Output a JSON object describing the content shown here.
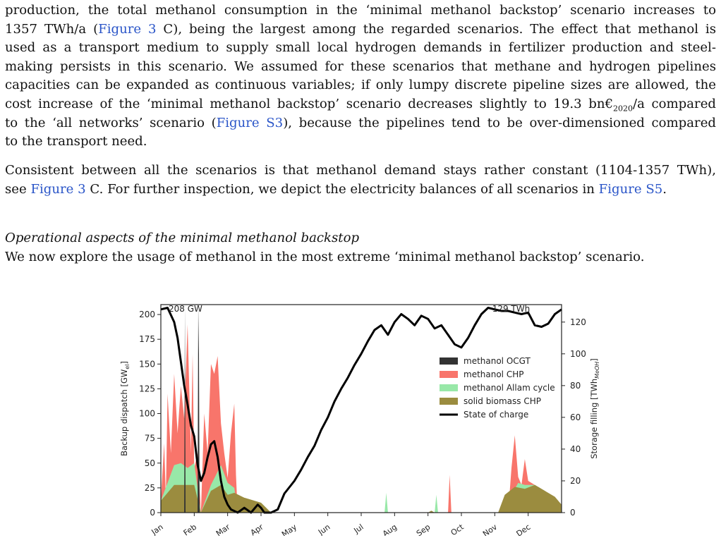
{
  "para1": {
    "l1": "production, the total methanol consumption in the ‘minimal methanol backstop’ scenario increases to",
    "l2a": "1357 TWh/a (",
    "l2ref": "Figure 3",
    "l2b": " C), being the largest among the regarded scenarios. The effect that methanol is",
    "l3": "used as a transport medium to supply small local hydrogen demands in fertilizer production and steel-",
    "l4": "making persists in this scenario. We assumed for these scenarios that methane and hydrogen pipelines",
    "l5": "capacities can be expanded as continuous variables; if only lumpy discrete pipeline sizes are allowed, the",
    "l6a": "cost increase of the ‘minimal methanol backstop’ scenario decreases slightly to 19.3 bn€",
    "l6sub": "2020",
    "l6b": "/a compared",
    "l7a": "to the ‘all networks’ scenario (",
    "l7ref": "Figure S3",
    "l7b": "), because the pipelines tend to be over-dimensioned compared",
    "l8": "to the transport need."
  },
  "para2": {
    "l1": "Consistent between all the scenarios is that methanol demand stays rather constant (1104-1357 TWh),",
    "l2a": "see ",
    "l2ref": "Figure 3",
    "l2b": " C. For further inspection, we depict the electricity balances of all scenarios in ",
    "l2ref2": "Figure S5",
    "l2c": "."
  },
  "section_heading": "Operational aspects of the minimal methanol backstop",
  "lead_sentence": "We now explore the usage of methanol in the most extreme ‘minimal methanol backstop’ scenario.",
  "colors": {
    "ocgt": "#333333",
    "chp": "#f8756b",
    "allam": "#98e8a8",
    "biomass": "#9b8c3f",
    "soc": "#000000",
    "link": "#2a55c8"
  },
  "chart_data": {
    "type": "area",
    "xlabel": "",
    "ylabel": "Backup dispatch [GW",
    "ylabel_sub": "el",
    "ylabel_end": "]",
    "y2label": "Storage filling [TWh",
    "y2label_sub": "MeOH",
    "y2label_end": "]",
    "ylim": [
      0,
      210
    ],
    "y2lim": [
      0,
      131
    ],
    "yticks": [
      "0",
      "25",
      "50",
      "75",
      "100",
      "125",
      "150",
      "175",
      "200"
    ],
    "y2ticks": [
      "0",
      "20",
      "40",
      "60",
      "80",
      "100",
      "120"
    ],
    "months": [
      "Jan",
      "Feb",
      "Mar",
      "Apr",
      "May",
      "Jun",
      "Jul",
      "Aug",
      "Sep",
      "Oct",
      "Nov",
      "Dec"
    ],
    "annotations": [
      {
        "text": "208 GW",
        "month": 0.95
      },
      {
        "text": "129 TWh",
        "month": 10.7
      }
    ],
    "legend": [
      "methanol OCGT",
      "methanol CHP",
      "methanol Allam cycle",
      "solid biomass CHP",
      "State of charge"
    ],
    "legend_position": "right",
    "series": [
      {
        "name": "solid biomass CHP",
        "x": [
          0,
          0.2,
          0.4,
          0.6,
          0.8,
          1.0,
          1.2,
          1.5,
          1.8,
          2.0,
          2.2,
          2.5,
          2.8,
          3.0,
          3.15,
          3.3,
          8.0,
          8.1,
          8.2,
          10.1,
          10.3,
          10.6,
          10.9,
          11.2,
          11.5,
          11.8,
          12.0
        ],
        "values": [
          12,
          20,
          28,
          28,
          28,
          28,
          0,
          22,
          28,
          18,
          20,
          15,
          12,
          10,
          5,
          0,
          0,
          2,
          0,
          0,
          18,
          26,
          24,
          28,
          22,
          16,
          8
        ]
      },
      {
        "name": "methanol Allam cycle",
        "x": [
          0,
          0.2,
          0.4,
          0.6,
          0.8,
          1.0,
          1.2,
          1.5,
          1.8,
          2.0,
          2.2,
          2.3,
          2.5,
          2.8,
          3.0,
          3.3,
          6.7,
          6.75,
          6.8,
          8.2,
          8.25,
          8.3,
          10.3,
          10.5,
          10.7,
          10.9,
          11.2,
          11.5,
          12.0
        ],
        "values": [
          12,
          30,
          48,
          50,
          45,
          50,
          0,
          28,
          48,
          30,
          25,
          0,
          15,
          12,
          10,
          0,
          0,
          20,
          0,
          0,
          18,
          0,
          0,
          18,
          30,
          28,
          28,
          22,
          8
        ]
      },
      {
        "name": "methanol CHP",
        "x": [
          0,
          0.1,
          0.15,
          0.2,
          0.3,
          0.4,
          0.5,
          0.6,
          0.7,
          0.8,
          0.9,
          0.95,
          1.0,
          1.1,
          1.2,
          1.3,
          1.4,
          1.5,
          1.6,
          1.7,
          1.8,
          1.9,
          2.0,
          2.1,
          2.2,
          2.25,
          2.3,
          2.5,
          2.8,
          3.3,
          8.6,
          8.65,
          8.7,
          10.4,
          10.5,
          10.6,
          10.7,
          10.8,
          10.9,
          11.0,
          11.2,
          11.5,
          12.0
        ],
        "values": [
          12,
          70,
          15,
          120,
          60,
          140,
          80,
          128,
          95,
          190,
          60,
          160,
          45,
          60,
          0,
          100,
          60,
          150,
          140,
          158,
          90,
          60,
          35,
          80,
          110,
          38,
          0,
          15,
          12,
          0,
          0,
          38,
          0,
          0,
          45,
          78,
          36,
          28,
          54,
          32,
          28,
          22,
          8
        ]
      },
      {
        "name": "methanol OCGT",
        "x": [
          0.7,
          0.72,
          0.74,
          1.1,
          1.12,
          1.14,
          1.16
        ],
        "values": [
          0,
          208,
          0,
          0,
          208,
          160,
          0
        ]
      },
      {
        "name": "State of charge",
        "axis": "right",
        "x": [
          0,
          0.2,
          0.4,
          0.5,
          0.6,
          0.7,
          0.8,
          0.9,
          1.0,
          1.1,
          1.2,
          1.3,
          1.4,
          1.5,
          1.6,
          1.7,
          1.8,
          1.9,
          2.0,
          2.1,
          2.2,
          2.3,
          2.5,
          2.7,
          2.9,
          3.0,
          3.1,
          3.3,
          3.5,
          3.7,
          4.0,
          4.2,
          4.4,
          4.6,
          4.8,
          5.0,
          5.2,
          5.4,
          5.6,
          5.8,
          6.0,
          6.2,
          6.4,
          6.6,
          6.8,
          7.0,
          7.2,
          7.4,
          7.6,
          7.8,
          8.0,
          8.2,
          8.4,
          8.6,
          8.8,
          9.0,
          9.2,
          9.4,
          9.6,
          9.8,
          10.0,
          10.2,
          10.4,
          10.6,
          10.8,
          11.0,
          11.2,
          11.4,
          11.6,
          11.8,
          12.0
        ],
        "values": [
          128,
          129,
          120,
          110,
          95,
          80,
          68,
          55,
          48,
          30,
          20,
          25,
          35,
          43,
          45,
          35,
          20,
          10,
          5,
          2,
          1,
          0,
          3,
          0,
          5,
          3,
          0,
          0,
          2,
          12,
          20,
          27,
          35,
          42,
          52,
          60,
          70,
          78,
          85,
          93,
          100,
          108,
          115,
          118,
          112,
          120,
          125,
          122,
          118,
          124,
          122,
          116,
          118,
          112,
          106,
          104,
          110,
          118,
          125,
          129,
          128,
          127,
          127,
          126,
          125,
          126,
          118,
          117,
          119,
          125,
          128
        ]
      }
    ]
  }
}
